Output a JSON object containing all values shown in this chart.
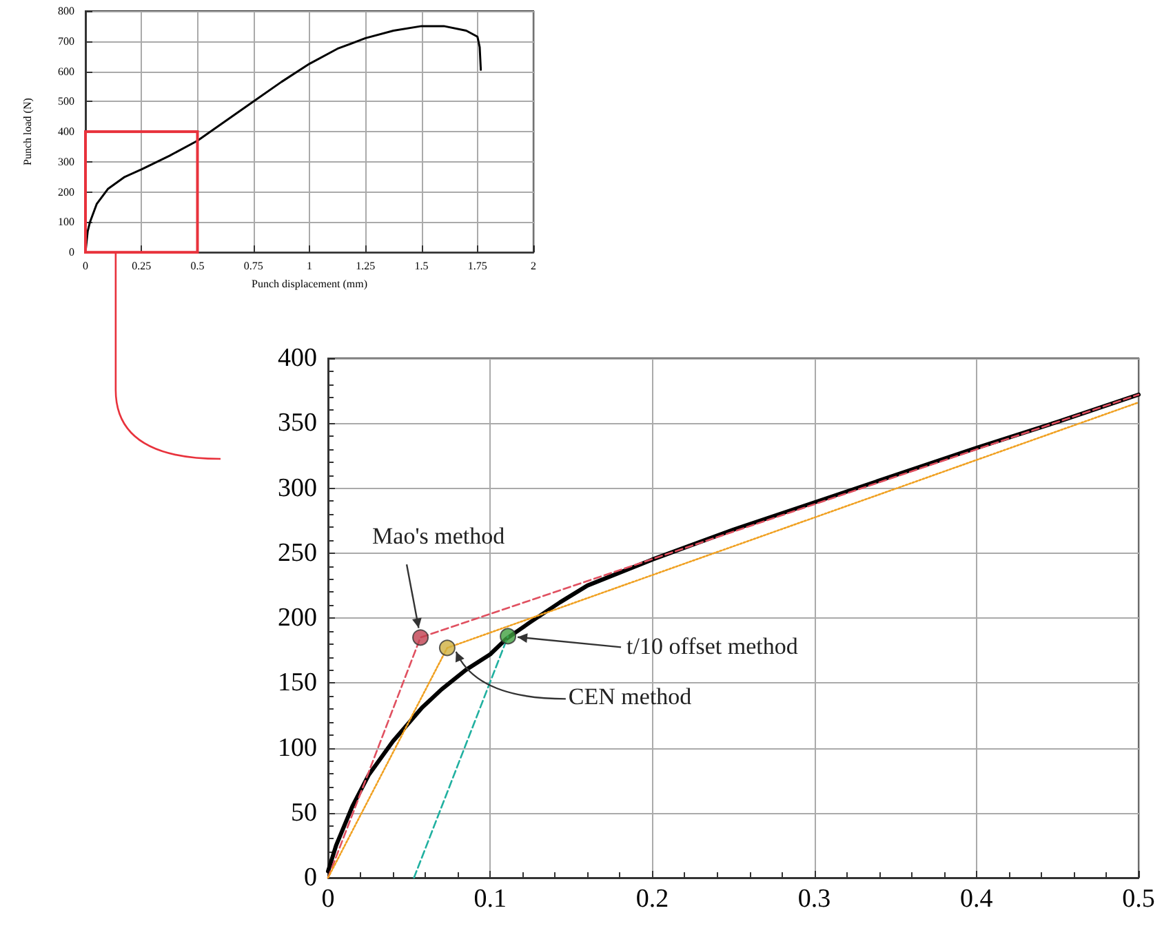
{
  "chart_data": [
    {
      "type": "line",
      "xlabel": "Punch displacement (mm)",
      "ylabel": "Punch load (N)",
      "xlim": [
        0,
        2
      ],
      "ylim": [
        0,
        800
      ],
      "xticks": [
        0,
        0.25,
        0.5,
        0.75,
        1,
        1.25,
        1.5,
        1.75,
        2
      ],
      "yticks": [
        0,
        100,
        200,
        300,
        400,
        500,
        600,
        700,
        800
      ],
      "grid": true,
      "series": [
        {
          "color": "#000000",
          "line_style": "solid",
          "x": [
            0,
            0.01,
            0.02,
            0.05,
            0.1,
            0.175,
            0.25,
            0.375,
            0.5,
            0.625,
            0.75,
            0.875,
            1,
            1.125,
            1.25,
            1.375,
            1.5,
            1.6,
            1.7,
            1.75,
            1.76,
            1.765
          ],
          "values": [
            0,
            70,
            100,
            160,
            210,
            250,
            275,
            320,
            370,
            435,
            500,
            565,
            625,
            675,
            710,
            735,
            750,
            750,
            735,
            715,
            680,
            605
          ]
        }
      ]
    },
    {
      "type": "line",
      "xlim": [
        0,
        0.5
      ],
      "ylim": [
        0,
        400
      ],
      "xticks": [
        0,
        0.1,
        0.2,
        0.3,
        0.4,
        0.5
      ],
      "yticks": [
        0,
        50,
        100,
        150,
        200,
        250,
        300,
        350,
        400
      ],
      "grid": true,
      "series": [
        {
          "color": "#000000",
          "line_style": "solid",
          "x": [
            0,
            0.005,
            0.01,
            0.015,
            0.025,
            0.04,
            0.058,
            0.07,
            0.085,
            0.1,
            0.11,
            0.125,
            0.143,
            0.16,
            0.2,
            0.25,
            0.3,
            0.35,
            0.4,
            0.45,
            0.5
          ],
          "values": [
            5,
            25,
            40,
            55,
            79,
            105,
            131,
            145,
            160,
            172,
            184,
            197,
            212,
            225,
            245,
            268,
            289,
            310,
            331,
            351,
            372
          ]
        },
        {
          "color": "#e05060",
          "line_style": "dashed",
          "x": [
            0,
            0.057,
            0.5
          ],
          "values": [
            0,
            185,
            372
          ]
        },
        {
          "color": "#f0a020",
          "line_style": "dotted",
          "x": [
            0,
            0.0735,
            0.5
          ],
          "values": [
            0,
            177,
            366
          ]
        },
        {
          "color": "#20b0a0",
          "line_style": "dashed",
          "x": [
            0.053,
            0.111
          ],
          "values": [
            0,
            186
          ]
        },
        {
          "type": "scatter",
          "marker": "circle",
          "x": [
            0.057,
            0.0735,
            0.111
          ],
          "values": [
            185,
            177,
            186
          ],
          "colors": [
            "#c04050",
            "#d0b040",
            "#40a040"
          ]
        }
      ],
      "annotations": [
        {
          "text": "Mao's method",
          "x": 0.057,
          "y": 185
        },
        {
          "text": "t/10 offset method",
          "x": 0.111,
          "y": 186
        },
        {
          "text": "CEN method",
          "x": 0.0735,
          "y": 177
        }
      ]
    }
  ]
}
